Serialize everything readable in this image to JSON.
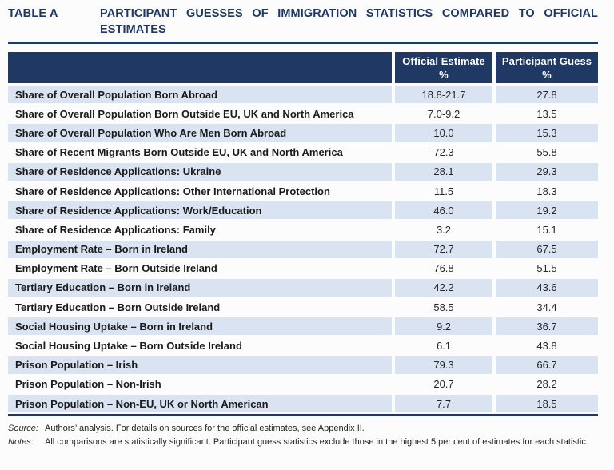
{
  "title": {
    "table_label": "TABLE A",
    "line1": "PARTICIPANT GUESSES OF IMMIGRATION STATISTICS COMPARED TO OFFICIAL",
    "line2": "ESTIMATES"
  },
  "table": {
    "header": {
      "col2_label": "Official Estimate",
      "col2_unit": "%",
      "col3_label": "Participant Guess",
      "col3_unit": "%"
    },
    "rows": [
      {
        "label": "Share of Overall Population Born Abroad",
        "official": "18.8-21.7",
        "guess": "27.8"
      },
      {
        "label": "Share of Overall Population Born Outside EU, UK and North America",
        "official": "7.0-9.2",
        "guess": "13.5"
      },
      {
        "label": "Share of Overall Population Who Are Men Born Abroad",
        "official": "10.0",
        "guess": "15.3"
      },
      {
        "label": "Share of Recent Migrants Born Outside EU, UK and North America",
        "official": "72.3",
        "guess": "55.8"
      },
      {
        "label": "Share of Residence Applications: Ukraine",
        "official": "28.1",
        "guess": "29.3"
      },
      {
        "label": "Share of Residence Applications: Other International Protection",
        "official": "11.5",
        "guess": "18.3"
      },
      {
        "label": "Share of Residence Applications: Work/Education",
        "official": "46.0",
        "guess": "19.2"
      },
      {
        "label": "Share of Residence Applications: Family",
        "official": "3.2",
        "guess": "15.1"
      },
      {
        "label": "Employment Rate – Born in Ireland",
        "official": "72.7",
        "guess": "67.5"
      },
      {
        "label": "Employment Rate – Born Outside Ireland",
        "official": "76.8",
        "guess": "51.5"
      },
      {
        "label": "Tertiary Education – Born in Ireland",
        "official": "42.2",
        "guess": "43.6"
      },
      {
        "label": "Tertiary Education – Born Outside Ireland",
        "official": "58.5",
        "guess": "34.4"
      },
      {
        "label": "Social Housing Uptake – Born in Ireland",
        "official": "9.2",
        "guess": "36.7"
      },
      {
        "label": "Social Housing Uptake – Born Outside Ireland",
        "official": "6.1",
        "guess": "43.8"
      },
      {
        "label": "Prison Population – Irish",
        "official": "79.3",
        "guess": "66.7"
      },
      {
        "label": "Prison Population – Non-Irish",
        "official": "20.7",
        "guess": "28.2"
      },
      {
        "label": "Prison Population – Non-EU, UK or North American",
        "official": "7.7",
        "guess": "18.5"
      }
    ]
  },
  "footer": {
    "source_label": "Source:",
    "source_text": "Authors’ analysis. For details on sources for the official estimates, see Appendix II.",
    "notes_label": "Notes:",
    "notes_text": "All comparisons are statistically significant. Participant guess statistics exclude those in the highest 5 per cent of estimates for each statistic."
  },
  "colors": {
    "header_bg": "#1f3864",
    "row_alt_bg": "#dae3f1",
    "title_color": "#1f3864",
    "rule_color": "#1f3864"
  }
}
